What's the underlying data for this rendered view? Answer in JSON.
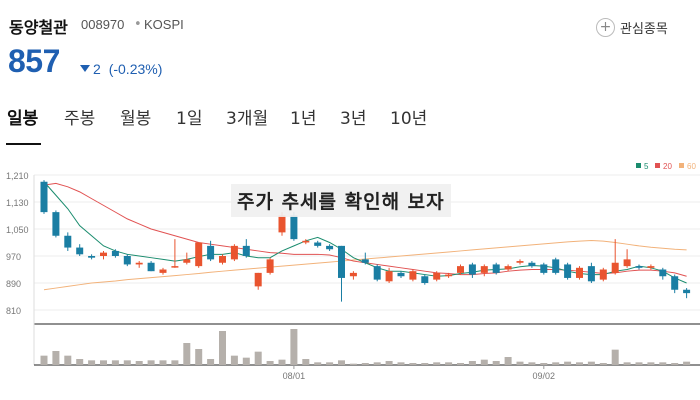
{
  "stock": {
    "name": "동양철관",
    "code": "008970",
    "market": "KOSPI",
    "price": "857",
    "change": "2",
    "change_pct": "(-0.23%)",
    "favorite_label": "관심종목"
  },
  "tabs": [
    {
      "label": "일봉"
    },
    {
      "label": "주봉"
    },
    {
      "label": "월봉"
    },
    {
      "label": "1일"
    },
    {
      "label": "3개월"
    },
    {
      "label": "1년"
    },
    {
      "label": "3년"
    },
    {
      "label": "10년"
    }
  ],
  "overlay_text": "주가 추세를 확인해 보자",
  "colors": {
    "up": "#e9542f",
    "down": "#1a7ea3",
    "ma5": "#1a8c6e",
    "ma20": "#e15252",
    "ma60": "#f2b27a",
    "price": "#1f5fb1"
  },
  "chart_data": {
    "type": "candlestick",
    "title": "",
    "ylim": [
      810,
      1210
    ],
    "yticks": [
      "1,210",
      "1,130",
      "1,050",
      "970",
      "890",
      "810"
    ],
    "xticks": [
      {
        "index": 21,
        "label": "08/01"
      },
      {
        "index": 42,
        "label": "09/02"
      }
    ],
    "legend": [
      {
        "name": "5",
        "color": "#1a8c6e"
      },
      {
        "name": "20",
        "color": "#e15252"
      },
      {
        "name": "60",
        "color": "#f2b27a"
      }
    ],
    "legend_position": "top-right",
    "candles": [
      [
        1190,
        1100,
        1195,
        1095
      ],
      [
        1100,
        1030,
        1105,
        1025
      ],
      [
        1030,
        995,
        1040,
        985
      ],
      [
        995,
        975,
        1005,
        970
      ],
      [
        970,
        965,
        975,
        960
      ],
      [
        970,
        980,
        985,
        960
      ],
      [
        985,
        970,
        990,
        965
      ],
      [
        970,
        945,
        975,
        940
      ],
      [
        945,
        950,
        955,
        935
      ],
      [
        950,
        925,
        955,
        925
      ],
      [
        920,
        930,
        935,
        915
      ],
      [
        940,
        940,
        1020,
        935
      ],
      [
        950,
        960,
        980,
        945
      ],
      [
        940,
        1010,
        1010,
        935
      ],
      [
        1000,
        960,
        1015,
        955
      ],
      [
        950,
        970,
        975,
        945
      ],
      [
        960,
        1000,
        1005,
        955
      ],
      [
        1000,
        970,
        1020,
        965
      ],
      [
        880,
        920,
        920,
        870
      ],
      [
        920,
        960,
        965,
        915
      ],
      [
        1040,
        1090,
        1100,
        1030
      ],
      [
        1090,
        1020,
        1100,
        1015
      ],
      [
        1010,
        1015,
        1020,
        1005
      ],
      [
        1010,
        1000,
        1015,
        995
      ],
      [
        1000,
        990,
        1005,
        985
      ],
      [
        1000,
        905,
        1000,
        835
      ],
      [
        910,
        920,
        925,
        900
      ],
      [
        960,
        950,
        980,
        945
      ],
      [
        940,
        900,
        945,
        895
      ],
      [
        895,
        925,
        935,
        890
      ],
      [
        920,
        910,
        925,
        905
      ],
      [
        900,
        925,
        930,
        895
      ],
      [
        910,
        890,
        915,
        885
      ],
      [
        900,
        920,
        925,
        895
      ],
      [
        910,
        915,
        920,
        905
      ],
      [
        920,
        940,
        945,
        915
      ],
      [
        945,
        915,
        950,
        905
      ],
      [
        920,
        940,
        945,
        910
      ],
      [
        945,
        920,
        950,
        915
      ],
      [
        930,
        940,
        945,
        925
      ],
      [
        950,
        955,
        960,
        945
      ],
      [
        950,
        940,
        955,
        935
      ],
      [
        945,
        920,
        950,
        915
      ],
      [
        960,
        920,
        965,
        915
      ],
      [
        945,
        905,
        950,
        900
      ],
      [
        905,
        935,
        940,
        900
      ],
      [
        940,
        895,
        950,
        890
      ],
      [
        900,
        930,
        935,
        895
      ],
      [
        920,
        950,
        1020,
        915
      ],
      [
        940,
        960,
        990,
        935
      ],
      [
        940,
        935,
        945,
        930
      ],
      [
        935,
        940,
        945,
        930
      ],
      [
        930,
        910,
        935,
        900
      ],
      [
        910,
        870,
        915,
        860
      ],
      [
        870,
        860,
        875,
        845
      ]
    ],
    "volume": [
      14,
      21,
      14,
      9,
      7,
      7,
      7,
      7,
      6,
      7,
      7,
      7,
      33,
      24,
      9,
      51,
      14,
      11,
      20,
      6,
      8,
      54,
      9,
      4,
      4,
      7,
      2,
      3,
      4,
      6,
      4,
      3,
      3,
      4,
      4,
      3,
      6,
      8,
      6,
      12,
      5,
      4,
      3,
      4,
      5,
      4,
      5,
      3,
      23,
      4,
      4,
      4,
      4,
      3,
      5
    ],
    "vol_max": 54,
    "ma5": [
      1190,
      1150,
      1110,
      1060,
      1030,
      1000,
      985,
      975,
      970,
      965,
      960,
      955,
      960,
      968,
      975,
      975,
      980,
      970,
      965,
      965,
      985,
      1000,
      1015,
      1025,
      1010,
      990,
      965,
      950,
      935,
      925,
      925,
      920,
      915,
      910,
      912,
      918,
      922,
      928,
      930,
      932,
      938,
      942,
      940,
      935,
      925,
      918,
      915,
      915,
      925,
      930,
      940,
      935,
      925,
      905,
      890
    ],
    "ma20": [
      1180,
      1185,
      1175,
      1160,
      1140,
      1120,
      1100,
      1080,
      1065,
      1050,
      1040,
      1030,
      1020,
      1010,
      1005,
      1000,
      995,
      990,
      985,
      980,
      978,
      975,
      975,
      975,
      973,
      965,
      955,
      950,
      945,
      940,
      935,
      930,
      925,
      920,
      918,
      915,
      915,
      918,
      920,
      925,
      928,
      930,
      930,
      930,
      928,
      925,
      922,
      918,
      920,
      925,
      928,
      928,
      925,
      920,
      910
    ],
    "ma60": [
      870,
      875,
      880,
      885,
      890,
      893,
      896,
      900,
      903,
      906,
      909,
      912,
      915,
      918,
      922,
      925,
      928,
      931,
      934,
      937,
      940,
      943,
      946,
      949,
      952,
      955,
      958,
      961,
      964,
      967,
      970,
      973,
      976,
      979,
      982,
      985,
      988,
      991,
      994,
      997,
      1000,
      1003,
      1006,
      1009,
      1012,
      1014,
      1016,
      1014,
      1010,
      1005,
      1000,
      996,
      993,
      990,
      988
    ]
  }
}
